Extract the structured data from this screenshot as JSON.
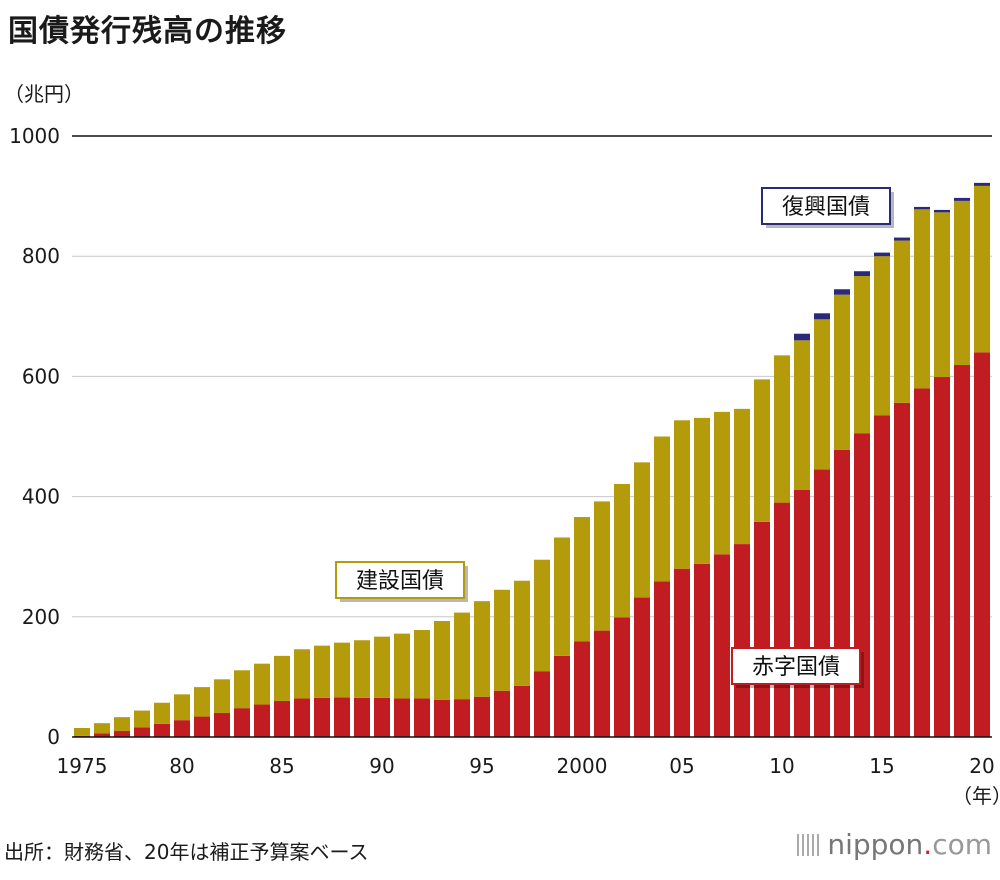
{
  "title": "国債発行残高の推移",
  "unit": "（兆円）",
  "source": "出所：財務省、20年は補正予算案ベース",
  "logo": {
    "brand": "nippon",
    "dot": ".",
    "tld": "com"
  },
  "chart_data": {
    "type": "bar",
    "stacked": true,
    "title": "国債発行残高の推移",
    "ylabel": "（兆円）",
    "xlabel": "（年）",
    "ylim": [
      0,
      1000
    ],
    "yticks": [
      0,
      200,
      400,
      600,
      800,
      1000
    ],
    "x_tick_labels": [
      {
        "year": 1975,
        "label": "1975"
      },
      {
        "year": 1980,
        "label": "80"
      },
      {
        "year": 1985,
        "label": "85"
      },
      {
        "year": 1990,
        "label": "90"
      },
      {
        "year": 1995,
        "label": "95"
      },
      {
        "year": 2000,
        "label": "2000"
      },
      {
        "year": 2005,
        "label": "05"
      },
      {
        "year": 2010,
        "label": "10"
      },
      {
        "year": 2015,
        "label": "15"
      },
      {
        "year": 2020,
        "label": "20"
      }
    ],
    "x_unit_label": "（年）",
    "categories": [
      1975,
      1976,
      1977,
      1978,
      1979,
      1980,
      1981,
      1982,
      1983,
      1984,
      1985,
      1986,
      1987,
      1988,
      1989,
      1990,
      1991,
      1992,
      1993,
      1994,
      1995,
      1996,
      1997,
      1998,
      1999,
      2000,
      2001,
      2002,
      2003,
      2004,
      2005,
      2006,
      2007,
      2008,
      2009,
      2010,
      2011,
      2012,
      2013,
      2014,
      2015,
      2016,
      2017,
      2018,
      2019,
      2020
    ],
    "series": [
      {
        "name": "赤字国債",
        "color": "#c01c22",
        "values": [
          2,
          6,
          10,
          16,
          22,
          28,
          34,
          40,
          48,
          54,
          60,
          64,
          65,
          66,
          65,
          65,
          64,
          64,
          62,
          63,
          67,
          77,
          85,
          109,
          135,
          159,
          177,
          199,
          232,
          259,
          280,
          288,
          304,
          321,
          358,
          390,
          411,
          445,
          478,
          505,
          535,
          556,
          580,
          599,
          619,
          640
        ]
      },
      {
        "name": "建設国債",
        "color": "#b39b0b",
        "values": [
          13,
          17,
          23,
          28,
          35,
          43,
          49,
          56,
          63,
          68,
          75,
          82,
          87,
          91,
          96,
          102,
          108,
          114,
          131,
          144,
          159,
          168,
          175,
          186,
          197,
          207,
          215,
          222,
          225,
          241,
          247,
          243,
          237,
          225,
          237,
          245,
          249,
          250,
          258,
          262,
          265,
          270,
          298,
          274,
          273,
          277
        ]
      },
      {
        "name": "復興国債",
        "color": "#2b2a78",
        "values": [
          0,
          0,
          0,
          0,
          0,
          0,
          0,
          0,
          0,
          0,
          0,
          0,
          0,
          0,
          0,
          0,
          0,
          0,
          0,
          0,
          0,
          0,
          0,
          0,
          0,
          0,
          0,
          0,
          0,
          0,
          0,
          0,
          0,
          0,
          0,
          0,
          11,
          10,
          9,
          8,
          6,
          5,
          4,
          4,
          5,
          5
        ]
      }
    ],
    "annotations": [
      {
        "text": "建設国債",
        "series": "建設国債"
      },
      {
        "text": "赤字国債",
        "series": "赤字国債"
      },
      {
        "text": "復興国債",
        "series": "復興国債"
      }
    ]
  }
}
